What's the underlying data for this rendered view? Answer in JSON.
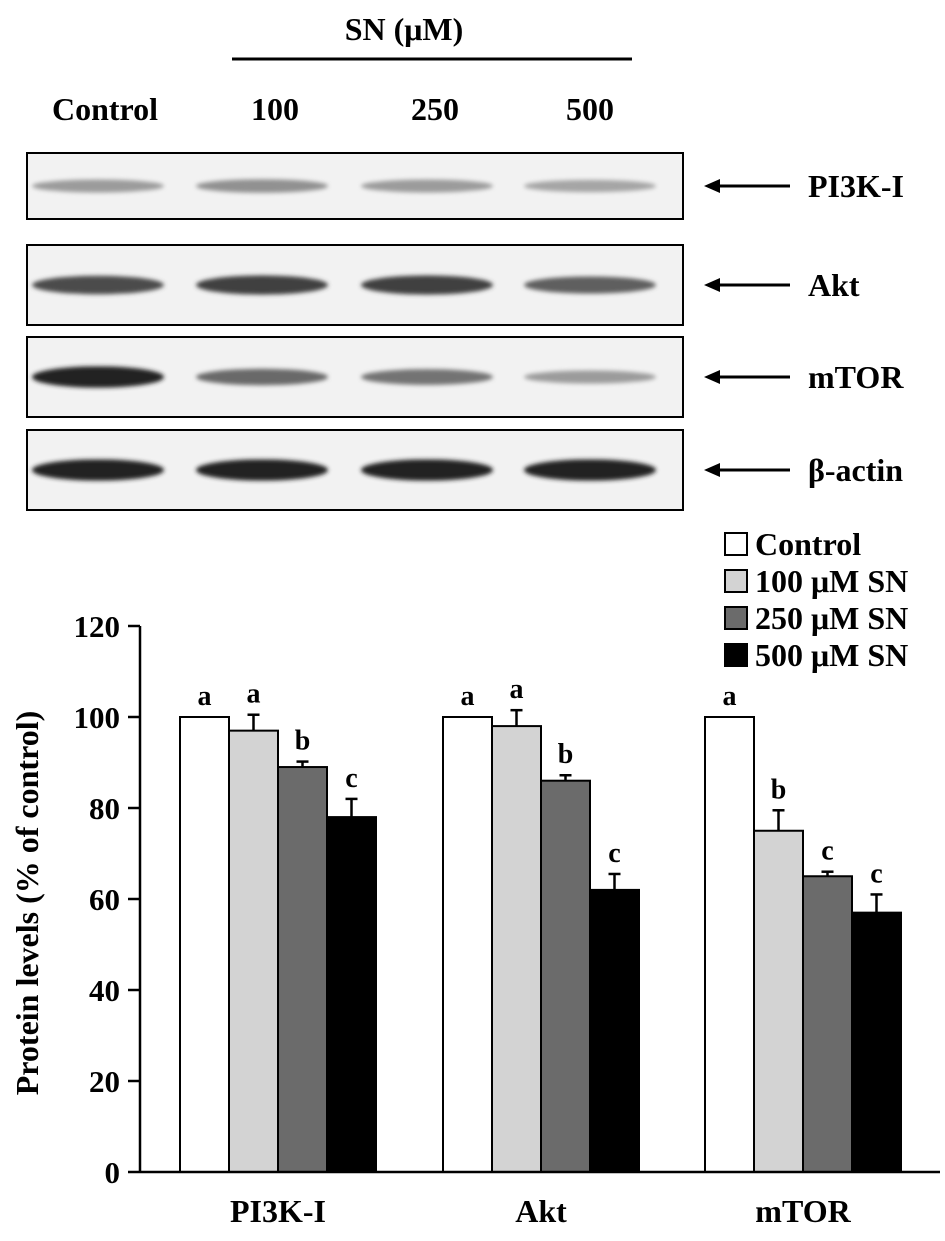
{
  "blot": {
    "treatment_label": "SN (μM)",
    "lane_labels": [
      "Control",
      "100",
      "250",
      "500"
    ],
    "rows": [
      {
        "label": "PI3K-I",
        "intensities": [
          0.35,
          0.4,
          0.35,
          0.3
        ]
      },
      {
        "label": "Akt",
        "intensities": [
          0.75,
          0.8,
          0.8,
          0.65
        ]
      },
      {
        "label": "mTOR",
        "intensities": [
          0.95,
          0.6,
          0.55,
          0.35
        ]
      },
      {
        "label": "β-actin",
        "intensities": [
          0.95,
          0.95,
          0.95,
          0.95
        ]
      }
    ]
  },
  "chart_data": {
    "type": "bar",
    "categories": [
      "PI3K-I",
      "Akt",
      "mTOR"
    ],
    "ylabel": "Protein levels (% of control)",
    "xlabel": "",
    "ylim": [
      0,
      120
    ],
    "yticks": [
      0,
      20,
      40,
      60,
      80,
      100,
      120
    ],
    "legend_position": "top-right",
    "series": [
      {
        "name": "Control",
        "color": "#ffffff",
        "values": [
          100,
          100,
          100
        ],
        "errors": [
          0,
          0,
          0
        ],
        "letters": [
          "a",
          "a",
          "a"
        ]
      },
      {
        "name": "100 μM SN",
        "color": "#d3d3d3",
        "values": [
          97,
          98,
          75
        ],
        "errors": [
          3.5,
          3.5,
          4.5
        ],
        "letters": [
          "a",
          "a",
          "b"
        ]
      },
      {
        "name": "250 μM SN",
        "color": "#6b6b6b",
        "values": [
          89,
          86,
          65
        ],
        "errors": [
          1.2,
          1.2,
          1.0
        ],
        "letters": [
          "b",
          "b",
          "c"
        ]
      },
      {
        "name": "500 μM SN",
        "color": "#000000",
        "values": [
          78,
          62,
          57
        ],
        "errors": [
          4.0,
          3.5,
          4.0
        ],
        "letters": [
          "c",
          "c",
          "c"
        ]
      }
    ]
  }
}
